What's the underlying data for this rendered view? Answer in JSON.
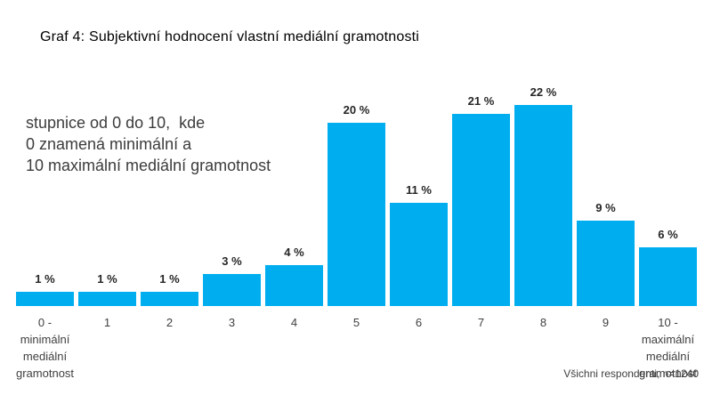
{
  "title": "Graf 4: Subjektivní hodnocení vlastní mediální gramotnosti",
  "annotation": {
    "lines": [
      "stupnice od 0 do 10,  kde",
      "0 znamená minimální a",
      "10 maximální mediální gramotnost"
    ]
  },
  "footer": "Všichni respondenti, n=1240",
  "colors": {
    "bar": "#00AEEF",
    "value_label": "#262626",
    "axis_label": "#404040"
  },
  "chart_data": {
    "type": "bar",
    "title": "Graf 4: Subjektivní hodnocení vlastní mediální gramotnosti",
    "subtitle": "stupnice od 0 do 10, kde 0 znamená minimální a 10 maximální mediální gramotnost",
    "categories": [
      "0 - minimální\nmediální\ngramotnost",
      "1",
      "2",
      "3",
      "4",
      "5",
      "6",
      "7",
      "8",
      "9",
      "10 -\nmaximální\nmediální\ngramotnost"
    ],
    "values": [
      1,
      1,
      1,
      3,
      4,
      20,
      11,
      21,
      22,
      9,
      6
    ],
    "value_labels": [
      "1 %",
      "1 %",
      "1 %",
      "3 %",
      "4 %",
      "20 %",
      "11 %",
      "21 %",
      "22 %",
      "9 %",
      "6 %"
    ],
    "unit": "%",
    "xlabel": "",
    "ylabel": "",
    "ylim": [
      0,
      23
    ],
    "grid": false,
    "legend": false,
    "bar_color": "#00AEEF",
    "note": "Všichni respondenti, n=1240"
  }
}
